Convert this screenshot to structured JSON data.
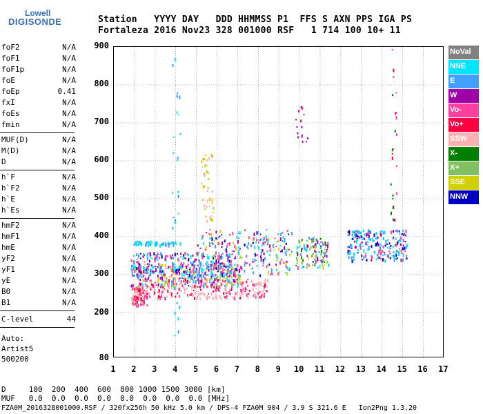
{
  "logo": {
    "top": "Lowell",
    "bottom": "DIGISONDE"
  },
  "header": {
    "labels": "Station   YYYY DAY   DDD HHMMSS P1  FFS S AXN PPS IGA PS",
    "values": "Fortaleza 2016 Nov23 328 001000 RSF   1 714 100 10+ 11"
  },
  "params_group1": [
    {
      "name": "foF2",
      "value": "N/A"
    },
    {
      "name": "foF1",
      "value": "N/A"
    },
    {
      "name": "foF1p",
      "value": "N/A"
    },
    {
      "name": "foE",
      "value": "N/A"
    },
    {
      "name": "foEp",
      "value": "0.41"
    },
    {
      "name": "fxI",
      "value": "N/A"
    },
    {
      "name": "foEs",
      "value": "N/A"
    },
    {
      "name": "fmin",
      "value": "N/A"
    }
  ],
  "params_group2": [
    {
      "name": "MUF(D)",
      "value": "N/A"
    },
    {
      "name": "M(D)",
      "value": "N/A"
    },
    {
      "name": "D",
      "value": "N/A"
    }
  ],
  "params_group3": [
    {
      "name": "h`F",
      "value": "N/A"
    },
    {
      "name": "h`F2",
      "value": "N/A"
    },
    {
      "name": "h`E",
      "value": "N/A"
    },
    {
      "name": "h`Es",
      "value": "N/A"
    }
  ],
  "params_group4": [
    {
      "name": "hmF2",
      "value": "N/A"
    },
    {
      "name": "hmF1",
      "value": "N/A"
    },
    {
      "name": "hmE",
      "value": "N/A"
    },
    {
      "name": "yF2",
      "value": "N/A"
    },
    {
      "name": "yF1",
      "value": "N/A"
    },
    {
      "name": "yE",
      "value": "N/A"
    },
    {
      "name": "B0",
      "value": "N/A"
    },
    {
      "name": "B1",
      "value": "N/A"
    }
  ],
  "clevel": {
    "name": "C-level",
    "value": "44"
  },
  "auto": {
    "line1": "Auto:",
    "line2": "Artist5",
    "line3": "500200"
  },
  "legend": [
    {
      "label": "NoVal",
      "color": "#808080"
    },
    {
      "label": "NNE",
      "color": "#00e5ff"
    },
    {
      "label": "E",
      "color": "#3fa0ff"
    },
    {
      "label": "W",
      "color": "#a000a8"
    },
    {
      "label": "Vo-",
      "color": "#ff3fa0"
    },
    {
      "label": "Vo+",
      "color": "#ff0040"
    },
    {
      "label": "SSW",
      "color": "#ffb0b0"
    },
    {
      "label": "X-",
      "color": "#008000"
    },
    {
      "label": "X+",
      "color": "#80c060"
    },
    {
      "label": "SSE",
      "color": "#d0d000"
    },
    {
      "label": "NNW",
      "color": "#0000c0"
    }
  ],
  "axes": {
    "y_ticks": [
      "900",
      "800",
      "700",
      "600",
      "500",
      "400",
      "300",
      "200",
      "80"
    ],
    "x_ticks": [
      "1",
      "2",
      "3",
      "4",
      "5",
      "6",
      "7",
      "8",
      "9",
      "10",
      "11",
      "12",
      "13",
      "14",
      "15",
      "16",
      "17"
    ]
  },
  "footer": {
    "d_row": "D     100  200  400  600  800 1000 1500 3000 [km]",
    "muf_row": "MUF   0.0  0.0  0.0  0.0  0.0  0.0  0.0  0.0 [MHz]",
    "info": "FZA0M_2016328001000.RSF / 320fx256h 50 kHz 5.0 km / DPS-4 FZA0M 904 / 3.9 S 321.6 E   Ion2Png 1.3.20"
  }
}
